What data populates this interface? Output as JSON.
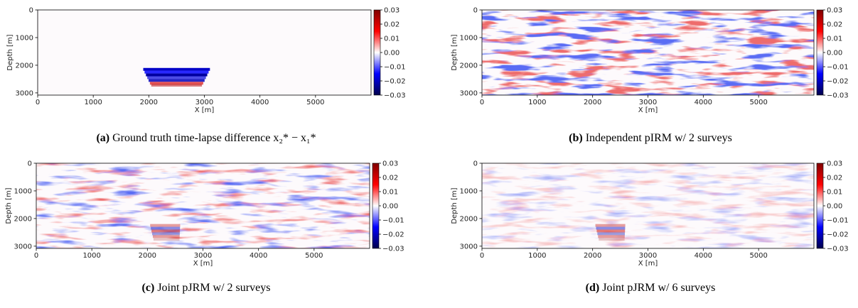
{
  "chart_data": [
    {
      "type": "heatmap",
      "label": "(a)",
      "caption": "Ground truth time-lapse difference x₂* − x₁*",
      "xlabel": "X [m]",
      "ylabel": "Depth [m]",
      "xlim": [
        0,
        6000
      ],
      "xticks": [
        0,
        1000,
        2000,
        3000,
        4000,
        5000
      ],
      "ylim": [
        3080,
        0
      ],
      "yticks": [
        0,
        1000,
        2000,
        3000
      ],
      "clim": [
        -0.03,
        0.03
      ],
      "cticks": [
        0.03,
        0.02,
        0.01,
        {
          "value": 0,
          "label": "0.00"
        },
        {
          "value": -0.01,
          "label": "−0.01"
        },
        {
          "value": -0.02,
          "label": "−0.02"
        },
        {
          "value": -0.03,
          "label": "−0.03"
        }
      ]
    },
    {
      "type": "heatmap",
      "label": "(b)",
      "caption": "Independent pIRM w/ 2 surveys",
      "xlabel": "X [m]",
      "ylabel": "Depth [m]",
      "xlim": [
        0,
        6000
      ],
      "xticks": [
        0,
        1000,
        2000,
        3000,
        4000,
        5000
      ],
      "ylim": [
        3080,
        0
      ],
      "yticks": [
        0,
        1000,
        2000,
        3000
      ],
      "clim": [
        -0.03,
        0.03
      ],
      "cticks": [
        0.03,
        0.02,
        0.01,
        {
          "value": 0,
          "label": "0.00"
        },
        {
          "value": -0.01,
          "label": "−0.01"
        },
        {
          "value": -0.02,
          "label": "−0.02"
        },
        {
          "value": -0.03,
          "label": "−0.03"
        }
      ]
    },
    {
      "type": "heatmap",
      "label": "(c)",
      "caption": "Joint pJRM w/ 2 surveys",
      "xlabel": "X [m]",
      "ylabel": "Depth [m]",
      "xlim": [
        0,
        6000
      ],
      "xticks": [
        0,
        1000,
        2000,
        3000,
        4000,
        5000
      ],
      "ylim": [
        3080,
        0
      ],
      "yticks": [
        0,
        1000,
        2000,
        3000
      ],
      "clim": [
        -0.03,
        0.03
      ],
      "cticks": [
        0.03,
        0.02,
        0.01,
        {
          "value": 0,
          "label": "0.00"
        },
        {
          "value": -0.01,
          "label": "−0.01"
        },
        {
          "value": -0.02,
          "label": "−0.02"
        },
        {
          "value": -0.03,
          "label": "−0.03"
        }
      ]
    },
    {
      "type": "heatmap",
      "label": "(d)",
      "caption": "Joint pJRM w/ 6 surveys",
      "xlabel": "X [m]",
      "ylabel": "Depth [m]",
      "xlim": [
        0,
        6000
      ],
      "xticks": [
        0,
        1000,
        2000,
        3000,
        4000,
        5000
      ],
      "ylim": [
        3080,
        0
      ],
      "yticks": [
        0,
        1000,
        2000,
        3000
      ],
      "clim": [
        -0.03,
        0.03
      ],
      "cticks": [
        0.03,
        0.02,
        0.01,
        {
          "value": 0,
          "label": "0.00"
        },
        {
          "value": -0.01,
          "label": "−0.01"
        },
        {
          "value": -0.02,
          "label": "−0.02"
        },
        {
          "value": -0.03,
          "label": "−0.03"
        }
      ]
    }
  ]
}
